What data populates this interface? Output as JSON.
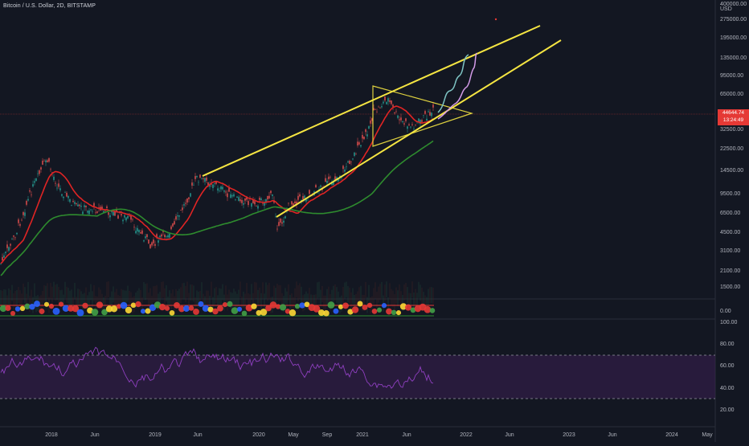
{
  "header": {
    "title": "Bitcoin / U.S. Dollar, 2D, BITSTAMP"
  },
  "price_axis": {
    "unit": "USD",
    "ticks": [
      "400000.00",
      "275000.00",
      "195000.00",
      "135000.00",
      "95000.00",
      "65000.00",
      "32500.00",
      "22500.00",
      "14500.00",
      "9500.00",
      "6500.00",
      "4500.00",
      "3100.00",
      "2100.00",
      "1500.00"
    ],
    "last_price": "44644.74",
    "countdown": "13:24:49"
  },
  "indicator_axis": {
    "ticks": [
      "0.00"
    ]
  },
  "rsi_axis": {
    "ticks": [
      "100.00",
      "80.00",
      "60.00",
      "40.00",
      "20.00"
    ]
  },
  "time_axis": {
    "labels": [
      "2018",
      "Jun",
      "2019",
      "Jun",
      "2020",
      "May",
      "Sep",
      "2021",
      "Jun",
      "2022",
      "Jun",
      "2023",
      "Jun",
      "2024",
      "May"
    ]
  },
  "colors": {
    "background": "#131722",
    "trendline": "#f5e542",
    "ma_fast": "#e02424",
    "ma_slow": "#2e8b2e",
    "rsi_line": "#8e3fbf",
    "rsi_band": "#3a1f52",
    "last_price_badge": "#e53935"
  }
}
